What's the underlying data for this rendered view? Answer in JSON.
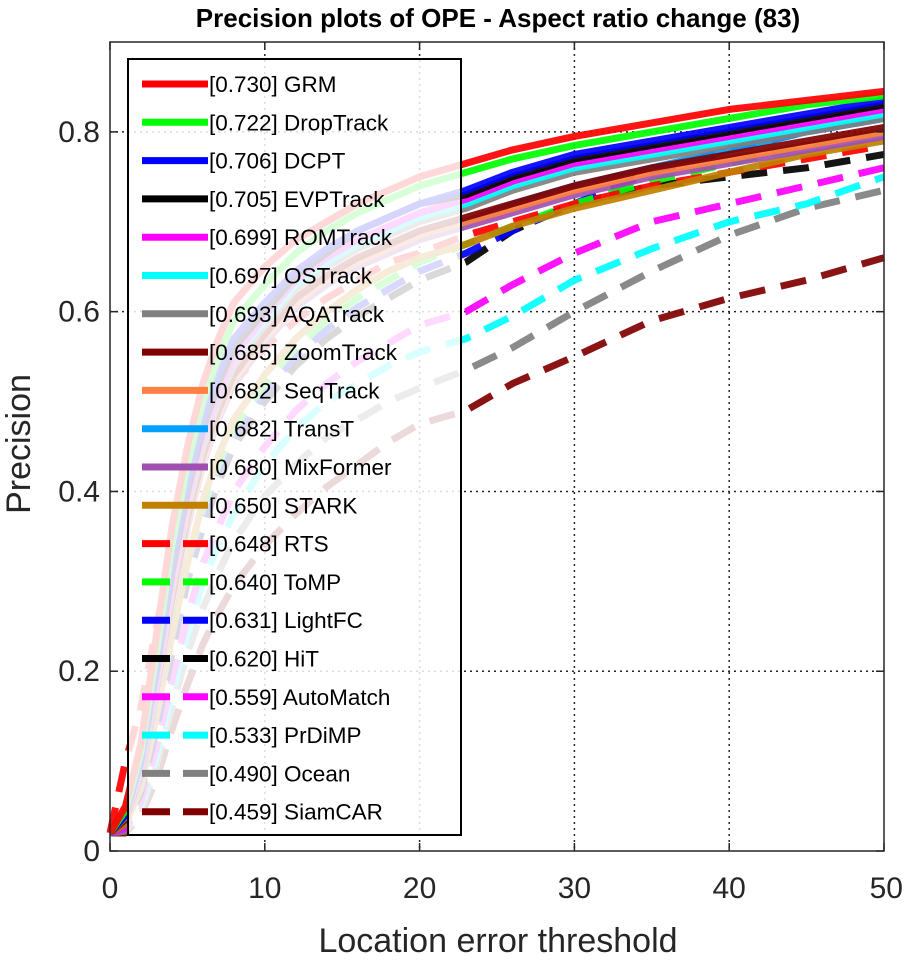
{
  "chart_data": {
    "type": "line",
    "title": "Precision plots of OPE - Aspect ratio change (83)",
    "xlabel": "Location error threshold",
    "ylabel": "Precision",
    "xlim": [
      0,
      50
    ],
    "ylim": [
      0,
      0.9
    ],
    "xticks": [
      0,
      10,
      20,
      30,
      40,
      50
    ],
    "xtick_labels": [
      "0",
      "10",
      "20",
      "30",
      "40",
      "50"
    ],
    "yticks": [
      0,
      0.2,
      0.4,
      0.6,
      0.8
    ],
    "ytick_labels": [
      "0",
      "0.2",
      "0.4",
      "0.6",
      "0.8"
    ],
    "grid": true,
    "legend_position": "top-left",
    "x": [
      0,
      1,
      2,
      3,
      4,
      5,
      6,
      7,
      8,
      10,
      12,
      14,
      16,
      18,
      20,
      23,
      26,
      30,
      35,
      40,
      45,
      50
    ],
    "series": [
      {
        "name": "[0.730] GRM",
        "color": "#ff0000",
        "dash": "solid",
        "values": [
          0.02,
          0.05,
          0.12,
          0.24,
          0.36,
          0.45,
          0.52,
          0.57,
          0.61,
          0.65,
          0.68,
          0.7,
          0.72,
          0.735,
          0.75,
          0.765,
          0.78,
          0.795,
          0.81,
          0.825,
          0.835,
          0.845
        ]
      },
      {
        "name": "[0.722] DropTrack",
        "color": "#00ff00",
        "dash": "solid",
        "values": [
          0.02,
          0.045,
          0.11,
          0.22,
          0.34,
          0.43,
          0.5,
          0.55,
          0.59,
          0.63,
          0.665,
          0.69,
          0.71,
          0.725,
          0.74,
          0.755,
          0.77,
          0.785,
          0.8,
          0.815,
          0.83,
          0.84
        ]
      },
      {
        "name": "[0.706] DCPT",
        "color": "#0000ff",
        "dash": "solid",
        "values": [
          0.02,
          0.04,
          0.1,
          0.2,
          0.32,
          0.41,
          0.48,
          0.53,
          0.57,
          0.61,
          0.645,
          0.67,
          0.69,
          0.705,
          0.72,
          0.735,
          0.755,
          0.775,
          0.79,
          0.805,
          0.82,
          0.835
        ]
      },
      {
        "name": "[0.705] EVPTrack",
        "color": "#000000",
        "dash": "solid",
        "values": [
          0.02,
          0.04,
          0.1,
          0.2,
          0.31,
          0.4,
          0.47,
          0.52,
          0.56,
          0.6,
          0.64,
          0.665,
          0.69,
          0.705,
          0.72,
          0.73,
          0.75,
          0.77,
          0.785,
          0.8,
          0.815,
          0.83
        ]
      },
      {
        "name": "[0.699] ROMTrack",
        "color": "#ff00ff",
        "dash": "solid",
        "values": [
          0.02,
          0.04,
          0.095,
          0.19,
          0.3,
          0.39,
          0.46,
          0.51,
          0.55,
          0.595,
          0.635,
          0.66,
          0.68,
          0.695,
          0.71,
          0.725,
          0.745,
          0.765,
          0.78,
          0.795,
          0.81,
          0.825
        ]
      },
      {
        "name": "[0.697] OSTrack",
        "color": "#00ffff",
        "dash": "solid",
        "values": [
          0.02,
          0.04,
          0.095,
          0.19,
          0.3,
          0.39,
          0.46,
          0.51,
          0.55,
          0.59,
          0.63,
          0.655,
          0.675,
          0.69,
          0.705,
          0.72,
          0.74,
          0.76,
          0.775,
          0.79,
          0.805,
          0.82
        ]
      },
      {
        "name": "[0.693] AQATrack",
        "color": "#808080",
        "dash": "solid",
        "values": [
          0.02,
          0.038,
          0.09,
          0.185,
          0.29,
          0.38,
          0.45,
          0.5,
          0.54,
          0.585,
          0.625,
          0.65,
          0.67,
          0.685,
          0.7,
          0.715,
          0.735,
          0.755,
          0.77,
          0.785,
          0.8,
          0.815
        ]
      },
      {
        "name": "[0.685] ZoomTrack",
        "color": "#800000",
        "dash": "solid",
        "values": [
          0.02,
          0.035,
          0.085,
          0.18,
          0.28,
          0.37,
          0.44,
          0.49,
          0.53,
          0.575,
          0.615,
          0.64,
          0.66,
          0.675,
          0.69,
          0.705,
          0.72,
          0.74,
          0.76,
          0.775,
          0.79,
          0.805
        ]
      },
      {
        "name": "[0.682] SeqTrack",
        "color": "#ff8040",
        "dash": "solid",
        "values": [
          0.02,
          0.035,
          0.085,
          0.175,
          0.275,
          0.365,
          0.435,
          0.485,
          0.525,
          0.57,
          0.61,
          0.635,
          0.655,
          0.67,
          0.685,
          0.7,
          0.715,
          0.735,
          0.755,
          0.77,
          0.785,
          0.8
        ]
      },
      {
        "name": "[0.682] TransT",
        "color": "#00a0ff",
        "dash": "solid",
        "values": [
          0.02,
          0.035,
          0.085,
          0.175,
          0.275,
          0.365,
          0.435,
          0.485,
          0.525,
          0.57,
          0.61,
          0.635,
          0.655,
          0.67,
          0.685,
          0.7,
          0.72,
          0.74,
          0.76,
          0.78,
          0.8,
          0.815
        ]
      },
      {
        "name": "[0.680] MixFormer",
        "color": "#a050b0",
        "dash": "solid",
        "values": [
          0.02,
          0.035,
          0.08,
          0.17,
          0.27,
          0.36,
          0.43,
          0.48,
          0.52,
          0.565,
          0.605,
          0.63,
          0.65,
          0.665,
          0.68,
          0.695,
          0.71,
          0.73,
          0.75,
          0.765,
          0.78,
          0.795
        ]
      },
      {
        "name": "[0.650] STARK",
        "color": "#c08000",
        "dash": "solid",
        "values": [
          0.02,
          0.03,
          0.07,
          0.15,
          0.24,
          0.32,
          0.39,
          0.44,
          0.48,
          0.53,
          0.57,
          0.6,
          0.625,
          0.645,
          0.66,
          0.675,
          0.695,
          0.715,
          0.735,
          0.755,
          0.775,
          0.79
        ]
      },
      {
        "name": "[0.648] RTS",
        "color": "#ff0000",
        "dash": "dashed",
        "values": [
          0.02,
          0.1,
          0.16,
          0.25,
          0.33,
          0.4,
          0.45,
          0.49,
          0.52,
          0.56,
          0.59,
          0.615,
          0.635,
          0.655,
          0.665,
          0.685,
          0.7,
          0.72,
          0.74,
          0.755,
          0.77,
          0.785
        ]
      },
      {
        "name": "[0.640] ToMP",
        "color": "#00ff00",
        "dash": "dashed",
        "values": [
          0.02,
          0.035,
          0.075,
          0.15,
          0.24,
          0.32,
          0.38,
          0.43,
          0.47,
          0.52,
          0.56,
          0.59,
          0.615,
          0.635,
          0.655,
          0.675,
          0.695,
          0.72,
          0.745,
          0.765,
          0.785,
          0.8
        ]
      },
      {
        "name": "[0.631] LightFC",
        "color": "#0000ff",
        "dash": "dashed",
        "values": [
          0.02,
          0.03,
          0.07,
          0.14,
          0.23,
          0.31,
          0.37,
          0.42,
          0.46,
          0.51,
          0.55,
          0.58,
          0.605,
          0.625,
          0.645,
          0.665,
          0.69,
          0.72,
          0.755,
          0.78,
          0.8,
          0.815
        ]
      },
      {
        "name": "[0.620] HiT",
        "color": "#000000",
        "dash": "dashed",
        "values": [
          0.02,
          0.03,
          0.065,
          0.135,
          0.22,
          0.3,
          0.36,
          0.41,
          0.45,
          0.5,
          0.54,
          0.57,
          0.595,
          0.615,
          0.635,
          0.655,
          0.69,
          0.72,
          0.74,
          0.75,
          0.76,
          0.775
        ]
      },
      {
        "name": "[0.559] AutoMatch",
        "color": "#ff00ff",
        "dash": "dashed",
        "values": [
          0.02,
          0.025,
          0.055,
          0.115,
          0.19,
          0.26,
          0.32,
          0.36,
          0.4,
          0.45,
          0.49,
          0.52,
          0.545,
          0.565,
          0.585,
          0.6,
          0.63,
          0.665,
          0.7,
          0.72,
          0.74,
          0.76
        ]
      },
      {
        "name": "[0.533] PrDiMP",
        "color": "#00ffff",
        "dash": "dashed",
        "values": [
          0.02,
          0.025,
          0.05,
          0.105,
          0.175,
          0.24,
          0.3,
          0.34,
          0.375,
          0.43,
          0.47,
          0.5,
          0.52,
          0.54,
          0.555,
          0.57,
          0.595,
          0.635,
          0.67,
          0.7,
          0.72,
          0.75
        ]
      },
      {
        "name": "[0.490] Ocean",
        "color": "#808080",
        "dash": "dashed",
        "values": [
          0.02,
          0.022,
          0.045,
          0.095,
          0.16,
          0.22,
          0.27,
          0.31,
          0.345,
          0.395,
          0.43,
          0.46,
          0.48,
          0.5,
          0.515,
          0.535,
          0.56,
          0.6,
          0.645,
          0.685,
          0.715,
          0.735
        ]
      },
      {
        "name": "[0.459] SiamCAR",
        "color": "#800000",
        "dash": "dashed",
        "values": [
          0.02,
          0.02,
          0.04,
          0.08,
          0.135,
          0.185,
          0.23,
          0.265,
          0.295,
          0.34,
          0.375,
          0.405,
          0.43,
          0.455,
          0.475,
          0.49,
          0.52,
          0.55,
          0.59,
          0.615,
          0.635,
          0.66
        ]
      }
    ]
  }
}
